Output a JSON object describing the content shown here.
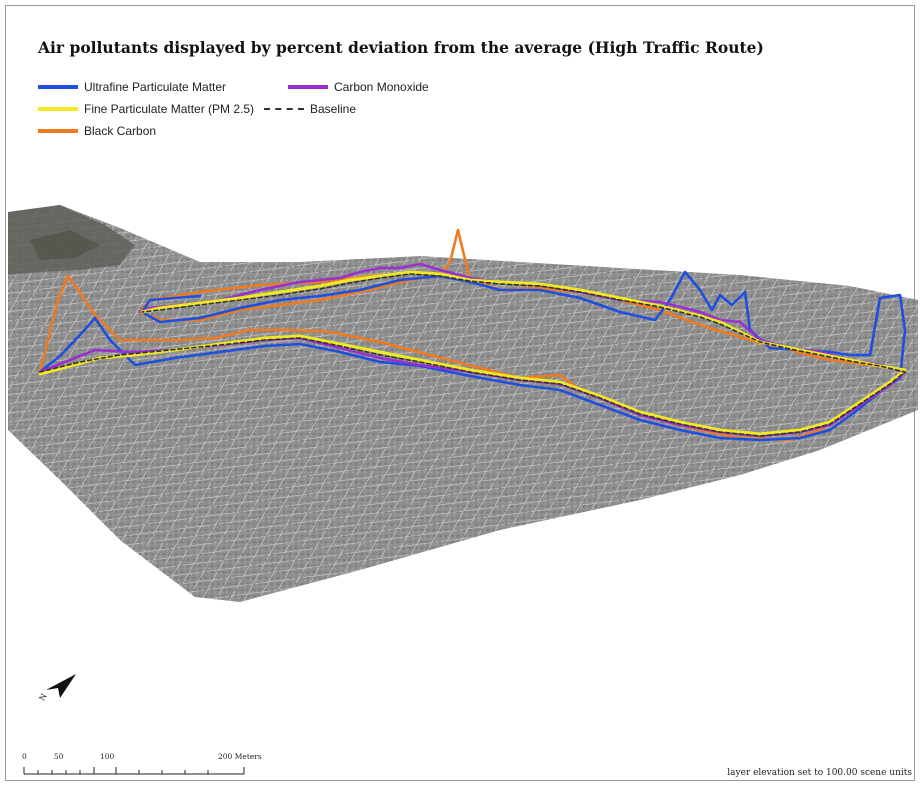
{
  "title": "Air pollutants displayed by percent deviation from the average (High Traffic Route)",
  "legend": {
    "items": [
      {
        "label": "Ultrafine Particulate Matter",
        "color": "#1f4fe0",
        "style": "solid"
      },
      {
        "label": "Carbon Monoxide",
        "color": "#9a2fcf",
        "style": "solid"
      },
      {
        "label": "Fine Particulate Matter (PM 2.5)",
        "color": "#f1ea22",
        "style": "solid"
      },
      {
        "label": "Baseline",
        "color": "#333333",
        "style": "dashed"
      },
      {
        "label": "Black Carbon",
        "color": "#f07a1f",
        "style": "solid"
      }
    ]
  },
  "scale": {
    "ticks": [
      "0",
      "50",
      "100",
      "200 Meters"
    ]
  },
  "elevation_note": "layer elevation set to 100.00 scene units",
  "north_arrow": {
    "label": "N",
    "icon": "north-arrow-icon"
  }
}
